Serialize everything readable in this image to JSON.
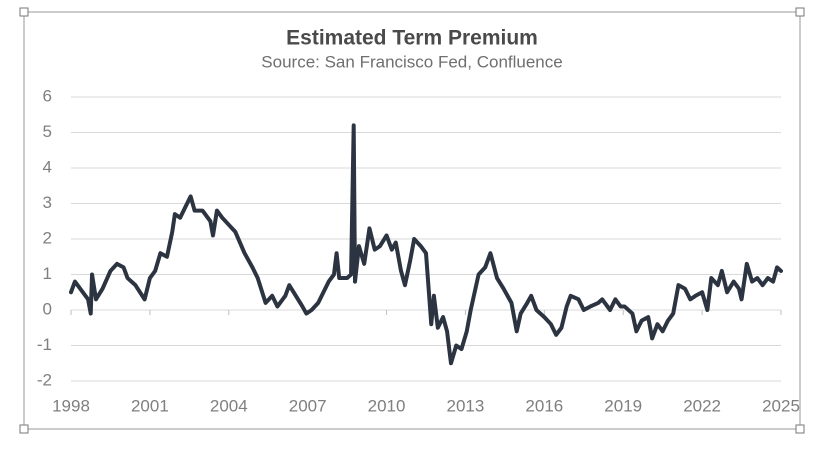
{
  "chart_data": {
    "type": "line",
    "title": "Estimated Term Premium",
    "subtitle": "Source: San Francisco Fed, Confluence",
    "color": "#2d3441",
    "grid": true,
    "xlim": [
      1998,
      2025
    ],
    "xticks": [
      1998,
      2001,
      2004,
      2007,
      2010,
      2013,
      2016,
      2019,
      2022,
      2025
    ],
    "ylim": [
      -2,
      6
    ],
    "yticks": [
      -2,
      -1,
      0,
      1,
      2,
      3,
      4,
      5,
      6
    ],
    "x": [
      1998.0,
      1998.15,
      1998.35,
      1998.65,
      1998.75,
      1998.8,
      1998.95,
      1999.2,
      1999.5,
      1999.75,
      2000.0,
      2000.15,
      2000.45,
      2000.8,
      2001.0,
      2001.2,
      2001.4,
      2001.65,
      2001.85,
      2001.95,
      2002.15,
      2002.35,
      2002.55,
      2002.7,
      2003.0,
      2003.3,
      2003.4,
      2003.55,
      2003.75,
      2004.0,
      2004.25,
      2004.6,
      2004.9,
      2005.1,
      2005.4,
      2005.65,
      2005.85,
      2006.15,
      2006.3,
      2006.55,
      2006.8,
      2006.95,
      2007.15,
      2007.4,
      2007.6,
      2007.8,
      2008.0,
      2008.1,
      2008.2,
      2008.5,
      2008.65,
      2008.75,
      2008.8,
      2008.95,
      2009.15,
      2009.35,
      2009.55,
      2009.75,
      2010.0,
      2010.2,
      2010.35,
      2010.55,
      2010.7,
      2010.9,
      2011.05,
      2011.3,
      2011.5,
      2011.7,
      2011.8,
      2011.95,
      2012.15,
      2012.3,
      2012.45,
      2012.65,
      2012.85,
      2013.05,
      2013.2,
      2013.5,
      2013.75,
      2013.95,
      2014.2,
      2014.45,
      2014.75,
      2014.95,
      2015.1,
      2015.35,
      2015.5,
      2015.7,
      2016.0,
      2016.25,
      2016.45,
      2016.65,
      2016.85,
      2017.0,
      2017.3,
      2017.5,
      2017.75,
      2018.05,
      2018.2,
      2018.5,
      2018.7,
      2018.9,
      2019.05,
      2019.35,
      2019.5,
      2019.7,
      2019.95,
      2020.1,
      2020.3,
      2020.5,
      2020.7,
      2020.9,
      2021.1,
      2021.35,
      2021.55,
      2021.75,
      2022.0,
      2022.2,
      2022.35,
      2022.6,
      2022.75,
      2022.95,
      2023.2,
      2023.4,
      2023.5,
      2023.7,
      2023.9,
      2024.1,
      2024.3,
      2024.5,
      2024.7,
      2024.85,
      2025.0
    ],
    "values": [
      0.5,
      0.8,
      0.6,
      0.3,
      -0.1,
      1.0,
      0.3,
      0.6,
      1.1,
      1.3,
      1.2,
      0.9,
      0.7,
      0.3,
      0.9,
      1.1,
      1.6,
      1.5,
      2.2,
      2.7,
      2.6,
      2.9,
      3.2,
      2.8,
      2.8,
      2.5,
      2.1,
      2.8,
      2.6,
      2.4,
      2.2,
      1.6,
      1.2,
      0.9,
      0.2,
      0.4,
      0.1,
      0.4,
      0.7,
      0.4,
      0.1,
      -0.1,
      0.0,
      0.2,
      0.5,
      0.8,
      1.0,
      1.6,
      0.9,
      0.9,
      1.0,
      5.2,
      0.8,
      1.8,
      1.3,
      2.3,
      1.7,
      1.8,
      2.1,
      1.7,
      1.9,
      1.1,
      0.7,
      1.4,
      2.0,
      1.8,
      1.6,
      -0.4,
      0.4,
      -0.5,
      -0.2,
      -0.6,
      -1.5,
      -1.0,
      -1.1,
      -0.6,
      0.0,
      1.0,
      1.2,
      1.6,
      0.9,
      0.6,
      0.2,
      -0.6,
      -0.1,
      0.2,
      0.4,
      0.0,
      -0.2,
      -0.4,
      -0.7,
      -0.5,
      0.1,
      0.4,
      0.3,
      0.0,
      0.1,
      0.2,
      0.3,
      0.0,
      0.3,
      0.1,
      0.1,
      -0.1,
      -0.6,
      -0.3,
      -0.2,
      -0.8,
      -0.4,
      -0.6,
      -0.3,
      -0.1,
      0.7,
      0.6,
      0.3,
      0.4,
      0.5,
      0.0,
      0.9,
      0.7,
      1.1,
      0.5,
      0.8,
      0.6,
      0.3,
      1.3,
      0.8,
      0.9,
      0.7,
      0.9,
      0.8,
      1.2,
      1.1
    ]
  }
}
